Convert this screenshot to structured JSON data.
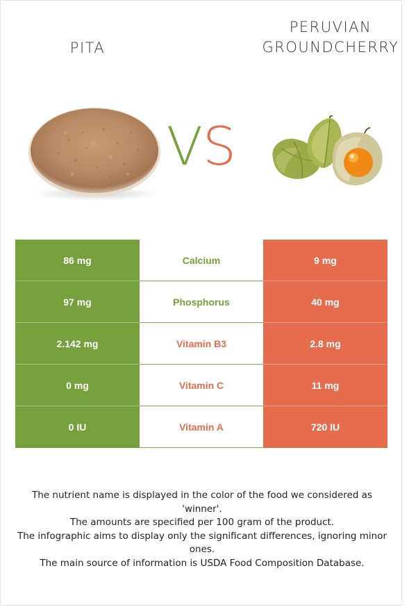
{
  "header": {
    "left_food": "PITA",
    "right_food_line1": "PERUVIAN",
    "right_food_line2": "GROUNDCHERRY",
    "vs_v": "V",
    "vs_s": "S"
  },
  "colors": {
    "winner_left": "#76a03c",
    "winner_right": "#e56d4d"
  },
  "icons": {
    "left_image": "pita-bread-image",
    "right_image": "groundcherry-fruit-image"
  },
  "rows": [
    {
      "left": "86 mg",
      "nutrient": "Calcium",
      "right": "9 mg",
      "winner": "left",
      "winner_color": "#76a03c"
    },
    {
      "left": "97 mg",
      "nutrient": "Phosphorus",
      "right": "40 mg",
      "winner": "left",
      "winner_color": "#76a03c"
    },
    {
      "left": "2.142 mg",
      "nutrient": "Vitamin B3",
      "right": "2.8 mg",
      "winner": "right",
      "winner_color": "#e56d4d"
    },
    {
      "left": "0 mg",
      "nutrient": "Vitamin C",
      "right": "11 mg",
      "winner": "right",
      "winner_color": "#e56d4d"
    },
    {
      "left": "0 IU",
      "nutrient": "Vitamin A",
      "right": "720 IU",
      "winner": "right",
      "winner_color": "#e56d4d"
    }
  ],
  "footer": {
    "line1": "The nutrient name is displayed in the color of the food we considered as 'winner'.",
    "line2": "The amounts are specified per 100 gram of the product.",
    "line3": "The infographic aims to display only the significant differences, ignoring minor ones.",
    "line4": "The main source of information is USDA Food Composition Database."
  }
}
